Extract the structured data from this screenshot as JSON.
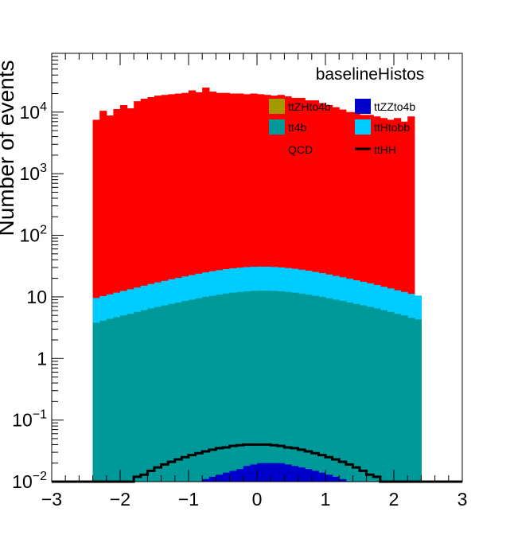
{
  "chart_data": {
    "type": "histogram-stack",
    "title": "baselineHistos",
    "xlabel": "",
    "ylabel": "Number of events",
    "xlim": [
      -3,
      3
    ],
    "ylim": [
      0.01,
      90000
    ],
    "yscale": "log",
    "xticks": [
      {
        "value": -3,
        "label": "−3"
      },
      {
        "value": -2,
        "label": "−2"
      },
      {
        "value": -1,
        "label": "−1"
      },
      {
        "value": 0,
        "label": "0"
      },
      {
        "value": 1,
        "label": "1"
      },
      {
        "value": 2,
        "label": "2"
      },
      {
        "value": 3,
        "label": "3"
      }
    ],
    "yticks": [
      {
        "value": 0.01,
        "base": "10",
        "exp": "−2"
      },
      {
        "value": 0.1,
        "base": "10",
        "exp": "−1"
      },
      {
        "value": 1,
        "base": "1",
        "exp": ""
      },
      {
        "value": 10,
        "base": "10",
        "exp": ""
      },
      {
        "value": 100,
        "base": "10",
        "exp": "2"
      },
      {
        "value": 1000,
        "base": "10",
        "exp": "3"
      },
      {
        "value": 10000,
        "base": "10",
        "exp": "4"
      }
    ],
    "legend_position": "top-right",
    "legend": [
      {
        "name": "ttZHto4b",
        "color": "#a39a00",
        "style": "box"
      },
      {
        "name": "ttZZto4b",
        "color": "#0000cc",
        "style": "box"
      },
      {
        "name": "tt4b",
        "color": "#009999",
        "style": "box"
      },
      {
        "name": "ttHtobb",
        "color": "#00ccff",
        "style": "box"
      },
      {
        "name": "QCD",
        "color": "#ff0000",
        "style": "none"
      },
      {
        "name": "ttHH",
        "color": "#000000",
        "style": "line"
      }
    ],
    "bin_edges_range": [
      -2.4,
      2.4
    ],
    "bin_width": 0.1,
    "series": [
      {
        "name": "ttZZto4b",
        "color": "#0000cc",
        "values": [
          0,
          0,
          0,
          0,
          0,
          0,
          0,
          0,
          0,
          0,
          0,
          0,
          0,
          0,
          0,
          0.01,
          0.011,
          0.012,
          0.013,
          0.014,
          0.015,
          0.016,
          0.018,
          0.019,
          0.02,
          0.02,
          0.02,
          0.02,
          0.019,
          0.018,
          0.017,
          0.016,
          0.015,
          0.014,
          0.013,
          0.012,
          0.011,
          0.01,
          0,
          0,
          0,
          0,
          0,
          0,
          0,
          0,
          0,
          0
        ]
      },
      {
        "name": "tt4b",
        "color": "#009999",
        "values": [
          3.8,
          4.1,
          4.4,
          4.7,
          5.0,
          5.3,
          5.7,
          6.1,
          6.5,
          6.9,
          7.3,
          7.7,
          8.1,
          8.6,
          9.0,
          9.5,
          10.0,
          10.4,
          10.9,
          11.3,
          11.7,
          12.0,
          12.3,
          12.5,
          12.6,
          12.6,
          12.5,
          12.3,
          12.0,
          11.7,
          11.3,
          10.9,
          10.4,
          10.0,
          9.5,
          9.0,
          8.6,
          8.1,
          7.7,
          7.3,
          6.9,
          6.5,
          6.1,
          5.7,
          5.3,
          5.0,
          4.6,
          4.3
        ]
      },
      {
        "name": "ttHtobb",
        "color": "#00ccff",
        "values": [
          5.8,
          6.2,
          6.6,
          7.0,
          7.5,
          8.0,
          8.5,
          9.1,
          9.7,
          10.3,
          10.9,
          11.6,
          12.2,
          12.9,
          13.6,
          14.3,
          15.0,
          15.7,
          16.3,
          16.9,
          17.4,
          17.8,
          18.1,
          18.3,
          18.4,
          18.3,
          18.1,
          17.8,
          17.4,
          16.9,
          16.3,
          15.7,
          15.0,
          14.3,
          13.6,
          12.9,
          12.2,
          11.6,
          10.9,
          10.3,
          9.7,
          9.1,
          8.5,
          8.0,
          7.5,
          7.0,
          6.6,
          6.2
        ]
      },
      {
        "name": "QCD",
        "color": "#ff0000",
        "values": [
          7500,
          10500,
          8800,
          11200,
          13000,
          11500,
          15000,
          16500,
          17500,
          18500,
          19000,
          19500,
          20000,
          20500,
          22500,
          21000,
          25000,
          21500,
          20500,
          20500,
          20000,
          20000,
          19500,
          20000,
          19500,
          19000,
          18500,
          19000,
          18000,
          17000,
          17000,
          15500,
          15500,
          14000,
          13000,
          12000,
          11000,
          10000,
          10000,
          9000,
          9000,
          8500,
          8000,
          7500,
          8000,
          7000,
          8500,
          0
        ]
      }
    ],
    "ttHH_line": {
      "name": "ttHH",
      "color": "#000000",
      "bin_edges_range": [
        -3.0,
        3.0
      ],
      "values": [
        0,
        0,
        0,
        0,
        0,
        0,
        0,
        0,
        0,
        0,
        0,
        0,
        0.012,
        0.013,
        0.015,
        0.017,
        0.019,
        0.021,
        0.023,
        0.025,
        0.027,
        0.029,
        0.031,
        0.033,
        0.035,
        0.036,
        0.038,
        0.039,
        0.04,
        0.04,
        0.04,
        0.04,
        0.039,
        0.038,
        0.036,
        0.035,
        0.033,
        0.031,
        0.029,
        0.027,
        0.025,
        0.023,
        0.021,
        0.019,
        0.017,
        0.015,
        0.013,
        0.012,
        0,
        0,
        0,
        0,
        0,
        0,
        0,
        0,
        0,
        0,
        0,
        0
      ]
    }
  }
}
